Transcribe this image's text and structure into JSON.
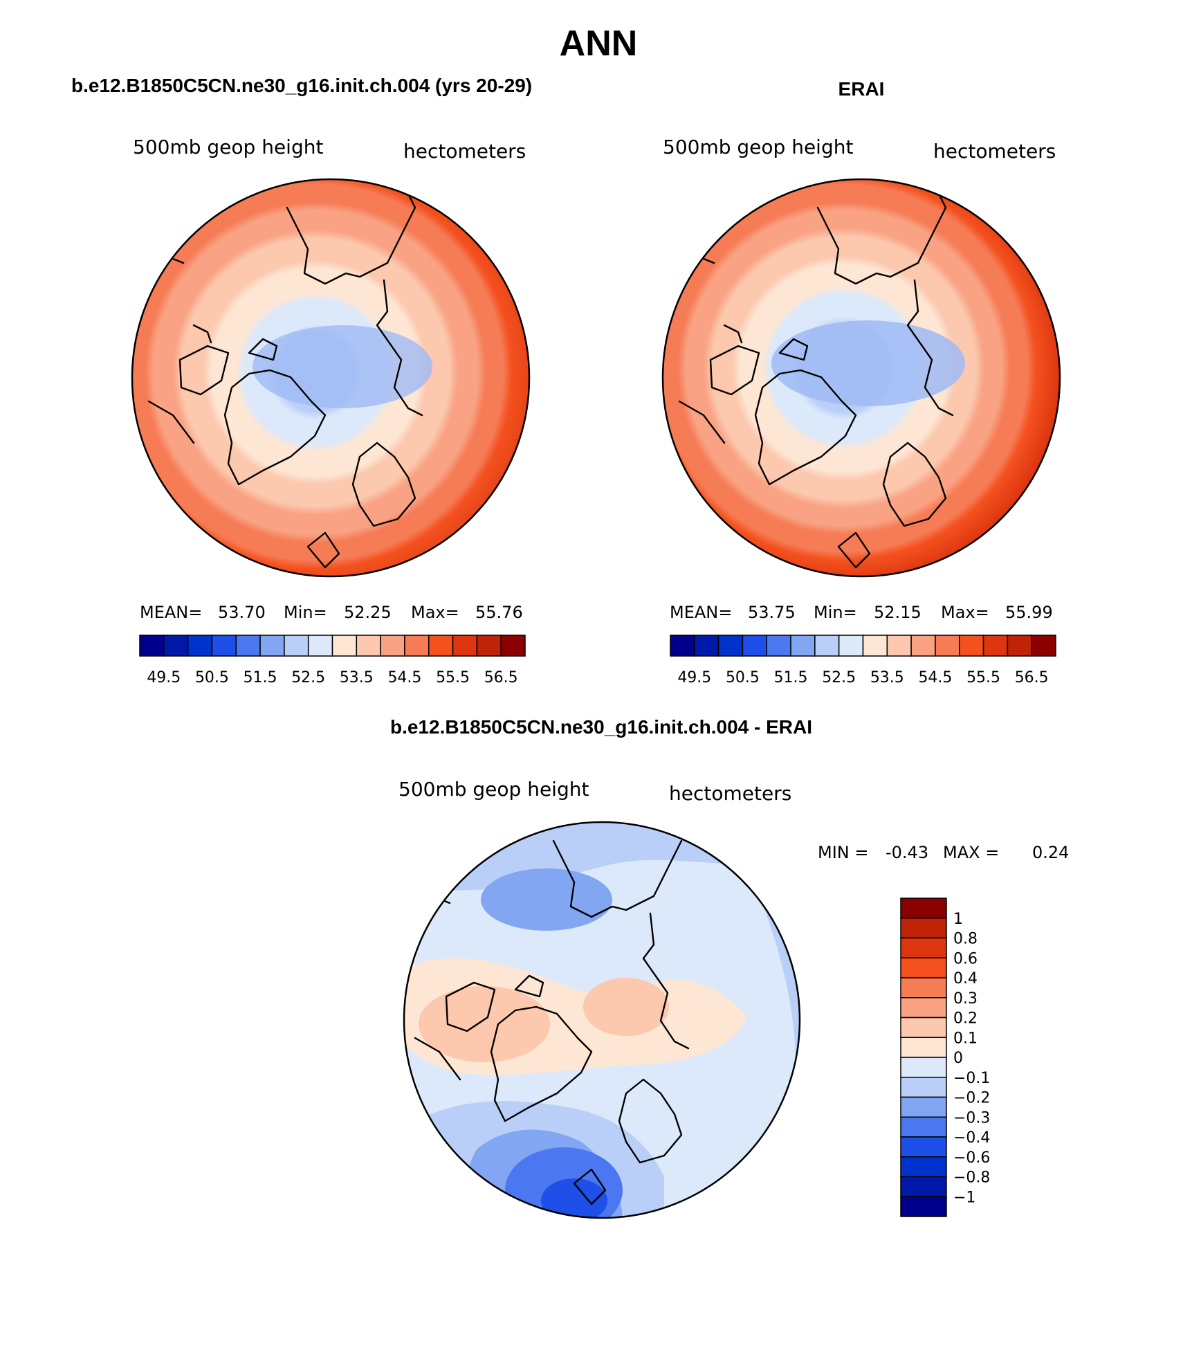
{
  "figure": {
    "title": "ANN",
    "panel_model_title": "b.e12.B1850C5CN.ne30_g16.init.ch.004 (yrs 20-29)",
    "panel_obs_title": "ERAI",
    "panel_diff_title": "b.e12.B1850C5CN.ne30_g16.init.ch.004 - ERAI"
  },
  "chart_data": [
    {
      "type": "heatmap",
      "id": "model",
      "projection": "polar stereographic (north pole)",
      "variable": "500mb geop height",
      "units": "hectometers",
      "stats": {
        "mean_label": "MEAN=",
        "mean": "53.70",
        "min_label": "Min=",
        "min": "52.25",
        "max_label": "Max=",
        "max": "55.76"
      },
      "pole_value": 52.3,
      "equatorward_value": 56.2,
      "colorbar": {
        "orientation": "horizontal",
        "colors": [
          "#00008c",
          "#0019a8",
          "#0033cc",
          "#1e4fe8",
          "#4b78f0",
          "#82a6f2",
          "#b9cff7",
          "#dbe9fb",
          "#fde6d4",
          "#fcc8ae",
          "#f9a384",
          "#f67c56",
          "#f4511f",
          "#de3610",
          "#bf2408",
          "#8b0000"
        ],
        "tick_labels": [
          "49.5",
          "50.5",
          "51.5",
          "52.5",
          "53.5",
          "54.5",
          "55.5",
          "56.5"
        ]
      }
    },
    {
      "type": "heatmap",
      "id": "obs",
      "projection": "polar stereographic (north pole)",
      "variable": "500mb geop height",
      "units": "hectometers",
      "stats": {
        "mean_label": "MEAN=",
        "mean": "53.75",
        "min_label": "Min=",
        "min": "52.15",
        "max_label": "Max=",
        "max": "55.99"
      },
      "pole_value": 52.2,
      "equatorward_value": 56.4,
      "colorbar": {
        "orientation": "horizontal",
        "colors": [
          "#00008c",
          "#0019a8",
          "#0033cc",
          "#1e4fe8",
          "#4b78f0",
          "#82a6f2",
          "#b9cff7",
          "#dbe9fb",
          "#fde6d4",
          "#fcc8ae",
          "#f9a384",
          "#f67c56",
          "#f4511f",
          "#de3610",
          "#bf2408",
          "#8b0000"
        ],
        "tick_labels": [
          "49.5",
          "50.5",
          "51.5",
          "52.5",
          "53.5",
          "54.5",
          "55.5",
          "56.5"
        ]
      }
    },
    {
      "type": "heatmap",
      "id": "diff",
      "projection": "polar stereographic (north pole)",
      "variable": "500mb geop height",
      "units": "hectometers",
      "stats": {
        "min_label": "MIN =",
        "min": "-0.43",
        "max_label": "MAX =",
        "max": "0.24"
      },
      "colorbar": {
        "orientation": "vertical",
        "colors": [
          "#00008c",
          "#0019a8",
          "#0033cc",
          "#1e4fe8",
          "#4b78f0",
          "#82a6f2",
          "#b9cff7",
          "#dbe9fb",
          "#fde6d4",
          "#fcc8ae",
          "#f9a384",
          "#f67c56",
          "#f4511f",
          "#de3610",
          "#bf2408",
          "#8b0000"
        ],
        "tick_labels": [
          "1",
          "0.8",
          "0.6",
          "0.4",
          "0.3",
          "0.2",
          "0.1",
          "0",
          "−0.1",
          "−0.2",
          "−0.3",
          "−0.4",
          "−0.6",
          "−0.8",
          "−1"
        ]
      }
    }
  ]
}
